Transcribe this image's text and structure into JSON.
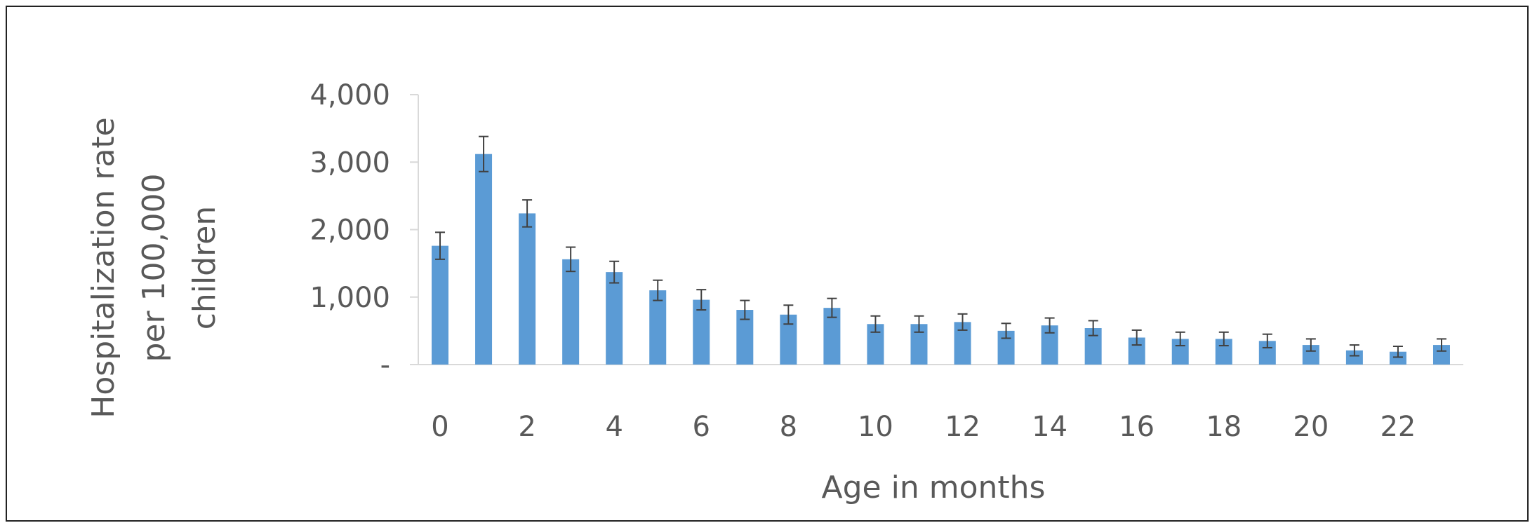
{
  "chart_data": {
    "type": "bar",
    "title": "",
    "xlabel": "Age in months",
    "ylabel_lines": [
      "Hospitalization rate",
      "per 100,000",
      "children"
    ],
    "categories": [
      0,
      1,
      2,
      3,
      4,
      5,
      6,
      7,
      8,
      9,
      10,
      11,
      12,
      13,
      14,
      15,
      16,
      17,
      18,
      19,
      20,
      21,
      22,
      23
    ],
    "x_tick_labels": [
      "0",
      "2",
      "4",
      "6",
      "8",
      "10",
      "12",
      "14",
      "16",
      "18",
      "20",
      "22"
    ],
    "x_tick_values": [
      0,
      2,
      4,
      6,
      8,
      10,
      12,
      14,
      16,
      18,
      20,
      22
    ],
    "y_tick_labels": [
      "-",
      "1,000",
      "2,000",
      "3,000",
      "4,000"
    ],
    "y_tick_values": [
      0,
      1000,
      2000,
      3000,
      4000
    ],
    "ylim": [
      0,
      4000
    ],
    "grid": false,
    "legend": "none",
    "series": [
      {
        "values": [
          1760,
          3120,
          2240,
          1560,
          1370,
          1100,
          960,
          810,
          740,
          840,
          600,
          600,
          630,
          500,
          580,
          540,
          400,
          380,
          380,
          350,
          290,
          210,
          190,
          290
        ],
        "error": [
          200,
          260,
          200,
          180,
          160,
          150,
          150,
          140,
          140,
          140,
          120,
          120,
          120,
          110,
          110,
          110,
          110,
          100,
          100,
          100,
          90,
          80,
          80,
          90
        ]
      }
    ],
    "colors": {
      "bar": "#5b9bd5",
      "error_bar": "#404040",
      "axis": "#d9d9d9",
      "text": "#595959"
    }
  }
}
